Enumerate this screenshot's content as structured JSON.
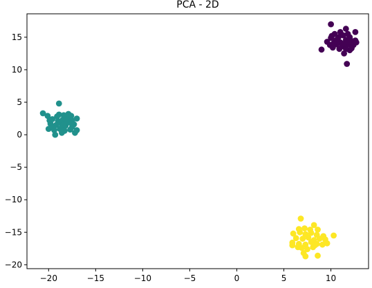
{
  "chart_data": {
    "type": "scatter",
    "title": "PCA - 2D",
    "xlabel": "",
    "ylabel": "",
    "xlim": [
      -22.3,
      14.0
    ],
    "ylim": [
      -20.6,
      18.6
    ],
    "xticks": [
      "−20",
      "−15",
      "−10",
      "−5",
      "0",
      "5",
      "10"
    ],
    "xtick_values": [
      -20,
      -15,
      -10,
      -5,
      0,
      5,
      10
    ],
    "yticks": [
      "−20",
      "−15",
      "−10",
      "−5",
      "0",
      "5",
      "10",
      "15"
    ],
    "ytick_values": [
      -20,
      -15,
      -10,
      -5,
      0,
      5,
      10,
      15
    ],
    "grid": false,
    "legend": "none",
    "marker": "circle",
    "series": [
      {
        "color": "#440154",
        "points": [
          [
            10.0,
            17.0
          ],
          [
            11.6,
            16.3
          ],
          [
            10.4,
            15.5
          ],
          [
            11.0,
            15.8
          ],
          [
            11.8,
            15.5
          ],
          [
            12.6,
            15.8
          ],
          [
            10.0,
            14.9
          ],
          [
            10.8,
            15.0
          ],
          [
            11.3,
            15.3
          ],
          [
            12.0,
            15.0
          ],
          [
            9.6,
            14.3
          ],
          [
            10.5,
            14.5
          ],
          [
            11.0,
            14.2
          ],
          [
            11.6,
            14.6
          ],
          [
            12.2,
            14.4
          ],
          [
            12.6,
            14.5
          ],
          [
            9.9,
            13.8
          ],
          [
            10.6,
            13.9
          ],
          [
            11.2,
            13.6
          ],
          [
            11.8,
            13.9
          ],
          [
            12.4,
            13.8
          ],
          [
            9.0,
            13.1
          ],
          [
            10.2,
            13.4
          ],
          [
            10.9,
            13.2
          ],
          [
            11.4,
            12.5
          ],
          [
            12.0,
            13.0
          ],
          [
            11.6,
            13.2
          ],
          [
            10.3,
            14.1
          ],
          [
            11.4,
            14.0
          ],
          [
            12.7,
            14.2
          ],
          [
            10.7,
            14.7
          ],
          [
            11.9,
            14.3
          ],
          [
            11.7,
            10.9
          ],
          [
            12.2,
            13.3
          ],
          [
            10.1,
            15.2
          ]
        ]
      },
      {
        "color": "#21918c",
        "points": [
          [
            -18.9,
            4.8
          ],
          [
            -20.6,
            3.3
          ],
          [
            -20.1,
            2.9
          ],
          [
            -19.6,
            2.4
          ],
          [
            -19.0,
            2.1
          ],
          [
            -18.5,
            2.3
          ],
          [
            -18.0,
            2.6
          ],
          [
            -17.5,
            2.2
          ],
          [
            -17.0,
            2.5
          ],
          [
            -19.8,
            1.7
          ],
          [
            -19.2,
            1.5
          ],
          [
            -18.7,
            1.8
          ],
          [
            -18.2,
            1.4
          ],
          [
            -17.8,
            1.9
          ],
          [
            -17.3,
            1.6
          ],
          [
            -20.0,
            0.9
          ],
          [
            -19.4,
            0.7
          ],
          [
            -18.8,
            0.9
          ],
          [
            -18.3,
            0.6
          ],
          [
            -17.7,
            0.8
          ],
          [
            -17.2,
            0.3
          ],
          [
            -19.3,
            0.0
          ],
          [
            -18.6,
            0.3
          ],
          [
            -18.9,
            3.1
          ],
          [
            -18.4,
            3.0
          ],
          [
            -17.9,
            3.2
          ],
          [
            -19.6,
            1.1
          ],
          [
            -18.1,
            2.0
          ],
          [
            -17.5,
            1.2
          ],
          [
            -19.1,
            2.8
          ],
          [
            -17.6,
            2.9
          ],
          [
            -18.7,
            1.0
          ],
          [
            -19.9,
            2.2
          ],
          [
            -17.0,
            0.7
          ],
          [
            -18.4,
            1.6
          ]
        ]
      },
      {
        "color": "#fde725",
        "points": [
          [
            6.8,
            -12.9
          ],
          [
            8.2,
            -13.9
          ],
          [
            6.6,
            -14.5
          ],
          [
            7.2,
            -14.4
          ],
          [
            7.8,
            -14.6
          ],
          [
            8.6,
            -14.6
          ],
          [
            6.0,
            -15.2
          ],
          [
            6.7,
            -15.0
          ],
          [
            7.3,
            -15.3
          ],
          [
            7.9,
            -15.1
          ],
          [
            8.5,
            -15.4
          ],
          [
            10.3,
            -15.5
          ],
          [
            6.3,
            -15.9
          ],
          [
            7.0,
            -16.0
          ],
          [
            7.6,
            -15.8
          ],
          [
            8.2,
            -16.2
          ],
          [
            8.8,
            -16.0
          ],
          [
            9.4,
            -16.1
          ],
          [
            5.9,
            -16.6
          ],
          [
            6.6,
            -16.8
          ],
          [
            7.3,
            -16.9
          ],
          [
            7.9,
            -16.5
          ],
          [
            8.5,
            -16.8
          ],
          [
            9.1,
            -16.9
          ],
          [
            9.6,
            -16.7
          ],
          [
            6.9,
            -17.4
          ],
          [
            7.5,
            -17.6
          ],
          [
            8.1,
            -17.3
          ],
          [
            7.1,
            -18.2
          ],
          [
            7.3,
            -18.7
          ],
          [
            8.6,
            -18.6
          ],
          [
            5.9,
            -17.0
          ],
          [
            9.2,
            -15.6
          ],
          [
            6.5,
            -17.3
          ],
          [
            8.3,
            -17.0
          ]
        ]
      }
    ]
  }
}
